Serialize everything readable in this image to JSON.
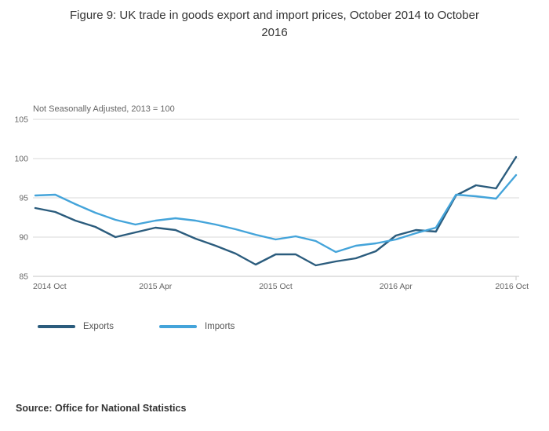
{
  "title": "Figure 9: UK trade in goods export and import prices, October 2014 to October 2016",
  "subtitle": "Not Seasonally Adjusted, 2013 = 100",
  "source": "Source: Office for National Statistics",
  "colors": {
    "exports": "#2b5c7d",
    "imports": "#44a4da",
    "gridline": "#d9d9d9",
    "axis_text": "#666666"
  },
  "legend": {
    "items": [
      {
        "label": "Exports",
        "color": "#2b5c7d"
      },
      {
        "label": "Imports",
        "color": "#44a4da"
      }
    ]
  },
  "chart_data": {
    "type": "line",
    "title": "Figure 9: UK trade in goods export and import prices, October 2014 to October 2016",
    "subtitle": "Not Seasonally Adjusted, 2013 = 100",
    "x": [
      "2014 Oct",
      "2014 Nov",
      "2014 Dec",
      "2015 Jan",
      "2015 Feb",
      "2015 Mar",
      "2015 Apr",
      "2015 May",
      "2015 Jun",
      "2015 Jul",
      "2015 Aug",
      "2015 Sep",
      "2015 Oct",
      "2015 Nov",
      "2015 Dec",
      "2016 Jan",
      "2016 Feb",
      "2016 Mar",
      "2016 Apr",
      "2016 May",
      "2016 Jun",
      "2016 Jul",
      "2016 Aug",
      "2016 Sep",
      "2016 Oct"
    ],
    "series": [
      {
        "name": "Exports",
        "color": "#2b5c7d",
        "values": [
          93.7,
          93.2,
          92.1,
          91.3,
          90.0,
          90.6,
          91.2,
          90.9,
          89.8,
          88.9,
          87.9,
          86.5,
          87.8,
          87.8,
          86.4,
          86.9,
          87.3,
          88.2,
          90.2,
          90.9,
          90.7,
          95.3,
          96.6,
          96.2,
          100.2
        ]
      },
      {
        "name": "Imports",
        "color": "#44a4da",
        "values": [
          95.3,
          95.4,
          94.2,
          93.1,
          92.2,
          91.6,
          92.1,
          92.4,
          92.1,
          91.6,
          91.0,
          90.3,
          89.7,
          90.1,
          89.5,
          88.1,
          88.9,
          89.2,
          89.7,
          90.5,
          91.2,
          95.4,
          95.2,
          94.9,
          97.9
        ]
      }
    ],
    "ylim": [
      85,
      105
    ],
    "y_ticks": [
      85,
      90,
      95,
      100,
      105
    ],
    "x_tick_labels": [
      "2014 Oct",
      "2015 Apr",
      "2015 Oct",
      "2016 Apr",
      "2016 Oct"
    ],
    "x_tick_indices": [
      0,
      6,
      12,
      18,
      24
    ],
    "xlabel": "",
    "ylabel": "",
    "grid": "horizontal",
    "legend_position": "bottom-left"
  }
}
